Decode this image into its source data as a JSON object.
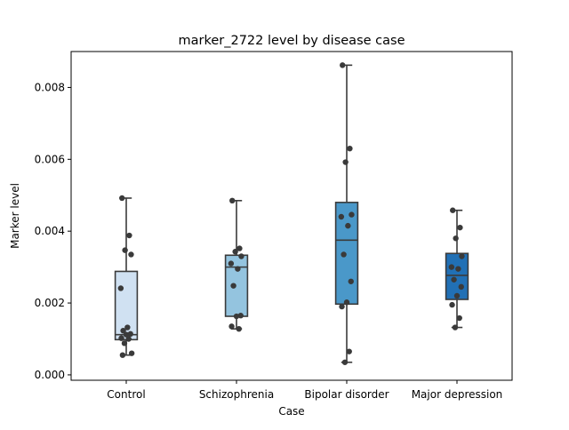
{
  "chart_data": {
    "type": "box",
    "title": "marker_2722 level by disease case",
    "xlabel": "Case",
    "ylabel": "Marker level",
    "ylim": [
      -0.00015,
      0.009
    ],
    "yticks": [
      0.0,
      0.002,
      0.004,
      0.006,
      0.008
    ],
    "ytick_labels": [
      "0.000",
      "0.002",
      "0.004",
      "0.006",
      "0.008"
    ],
    "categories": [
      "Control",
      "Schizophrenia",
      "Bipolar disorder",
      "Major depression"
    ],
    "box_colors": [
      "#d0e1f2",
      "#94c4df",
      "#4a98c9",
      "#2170b5"
    ],
    "boxes": [
      {
        "name": "Control",
        "whislo": 0.00055,
        "q1": 0.00098,
        "med": 0.00112,
        "q3": 0.00288,
        "whishi": 0.00492
      },
      {
        "name": "Schizophrenia",
        "whislo": 0.00128,
        "q1": 0.00163,
        "med": 0.003,
        "q3": 0.00333,
        "whishi": 0.00485
      },
      {
        "name": "Bipolar disorder",
        "whislo": 0.00035,
        "q1": 0.00197,
        "med": 0.00375,
        "q3": 0.0048,
        "whishi": 0.00862
      },
      {
        "name": "Major depression",
        "whislo": 0.00132,
        "q1": 0.0021,
        "med": 0.00277,
        "q3": 0.00338,
        "whishi": 0.00458
      }
    ],
    "points": [
      [
        0.00492,
        0.00388,
        0.00347,
        0.00335,
        0.00241,
        0.00132,
        0.00123,
        0.00114,
        0.00112,
        0.00102,
        0.001,
        0.00088,
        0.0006,
        0.00055
      ],
      [
        0.00485,
        0.00352,
        0.00343,
        0.0033,
        0.0031,
        0.00295,
        0.00248,
        0.00165,
        0.00163,
        0.00135,
        0.00128
      ],
      [
        0.00862,
        0.0063,
        0.00592,
        0.00446,
        0.0044,
        0.00415,
        0.00335,
        0.0026,
        0.00202,
        0.0019,
        0.00065,
        0.00035
      ],
      [
        0.00458,
        0.0041,
        0.0038,
        0.0033,
        0.003,
        0.00295,
        0.00265,
        0.00245,
        0.0022,
        0.00195,
        0.00158,
        0.00132
      ]
    ]
  }
}
